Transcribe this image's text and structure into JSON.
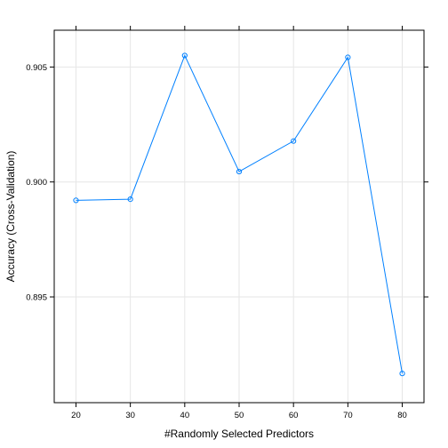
{
  "chart_data": {
    "type": "line",
    "title": "",
    "xlabel": "#Randomly Selected Predictors",
    "ylabel": "Accuracy (Cross-Validation)",
    "x": [
      20,
      30,
      40,
      50,
      60,
      70,
      80
    ],
    "series": [
      {
        "values": [
          0.8992,
          0.89925,
          0.9055,
          0.90045,
          0.90178,
          0.90542,
          0.89167
        ]
      }
    ],
    "xticks": [
      20,
      30,
      40,
      50,
      60,
      70,
      80
    ],
    "xtick_labels": [
      "20",
      "30",
      "40",
      "50",
      "60",
      "70",
      "80"
    ],
    "yticks": [
      0.895,
      0.9,
      0.905
    ],
    "ytick_labels": [
      "0.895",
      "0.900",
      "0.905"
    ],
    "xlim": [
      16,
      84
    ],
    "ylim": [
      0.8904,
      0.9066
    ],
    "grid": true,
    "line_color": "#0080ff",
    "grid_color": "#e6e6e6"
  }
}
